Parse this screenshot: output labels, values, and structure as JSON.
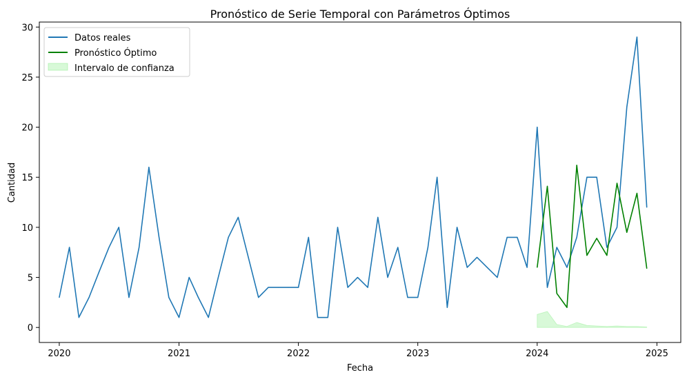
{
  "chart_data": {
    "type": "line",
    "title": "Pronóstico de Serie Temporal con Parámetros Óptimos",
    "xlabel": "Fecha",
    "ylabel": "Cantidad",
    "xlim": [
      "2019-11-01",
      "2025-03-15"
    ],
    "ylim": [
      -1.5,
      30.5
    ],
    "x_ticks": [
      "2020",
      "2021",
      "2022",
      "2023",
      "2024",
      "2025"
    ],
    "x_tick_dates": [
      "2020-01-01",
      "2021-01-01",
      "2022-01-01",
      "2023-01-01",
      "2024-01-01",
      "2025-01-01"
    ],
    "y_ticks": [
      0,
      5,
      10,
      15,
      20,
      25,
      30
    ],
    "grid": false,
    "legend": "top-left",
    "series": [
      {
        "name": "Datos reales",
        "color": "#1f77b4",
        "kind": "line",
        "x": [
          "2020-01",
          "2020-02",
          "2020-03",
          "2020-04",
          "2020-05",
          "2020-06",
          "2020-07",
          "2020-08",
          "2020-09",
          "2020-10",
          "2020-11",
          "2020-12",
          "2021-01",
          "2021-02",
          "2021-03",
          "2021-04",
          "2021-05",
          "2021-06",
          "2021-07",
          "2021-08",
          "2021-09",
          "2021-10",
          "2021-11",
          "2021-12",
          "2022-01",
          "2022-02",
          "2022-03",
          "2022-04",
          "2022-05",
          "2022-06",
          "2022-07",
          "2022-08",
          "2022-09",
          "2022-10",
          "2022-11",
          "2022-12",
          "2023-01",
          "2023-02",
          "2023-03",
          "2023-04",
          "2023-05",
          "2023-06",
          "2023-07",
          "2023-08",
          "2023-09",
          "2023-10",
          "2023-11",
          "2023-12",
          "2024-01",
          "2024-02",
          "2024-03",
          "2024-04",
          "2024-05",
          "2024-06",
          "2024-07",
          "2024-08",
          "2024-09",
          "2024-10",
          "2024-11",
          "2024-12"
        ],
        "values": [
          3,
          8,
          1,
          3,
          5.5,
          8,
          10,
          3,
          8,
          16,
          9,
          3,
          1,
          5,
          3,
          1,
          5,
          9,
          11,
          7,
          3,
          4,
          4,
          4,
          4,
          9,
          1,
          1,
          10,
          4,
          5,
          4,
          11,
          5,
          8,
          3,
          3,
          8,
          15,
          2,
          10,
          6,
          7,
          6,
          5,
          9,
          9,
          6,
          20,
          4,
          8,
          6,
          9,
          15,
          15,
          8,
          10,
          22,
          29,
          12
        ]
      },
      {
        "name": "Pronóstico Óptimo",
        "color": "#008000",
        "kind": "line",
        "x": [
          "2024-01",
          "2024-02",
          "2024-03",
          "2024-04",
          "2024-05",
          "2024-06",
          "2024-07",
          "2024-08",
          "2024-09",
          "2024-10",
          "2024-11",
          "2024-12"
        ],
        "values": [
          6,
          14.1,
          3.4,
          2,
          16.2,
          7.2,
          8.9,
          7.2,
          14.4,
          9.5,
          13.4,
          5.9
        ]
      },
      {
        "name": "Intervalo de confianza",
        "color": "#90ee90",
        "kind": "band",
        "x": [
          "2024-01",
          "2024-02",
          "2024-03",
          "2024-04",
          "2024-05",
          "2024-06",
          "2024-07",
          "2024-08",
          "2024-09",
          "2024-10",
          "2024-11",
          "2024-12"
        ],
        "lower": [
          0,
          0,
          0,
          0,
          0,
          0,
          0,
          0,
          0,
          0,
          0,
          0
        ],
        "upper": [
          1.3,
          1.6,
          0.3,
          0.1,
          0.5,
          0.2,
          0.15,
          0.1,
          0.15,
          0.1,
          0.1,
          0.05
        ]
      }
    ]
  }
}
